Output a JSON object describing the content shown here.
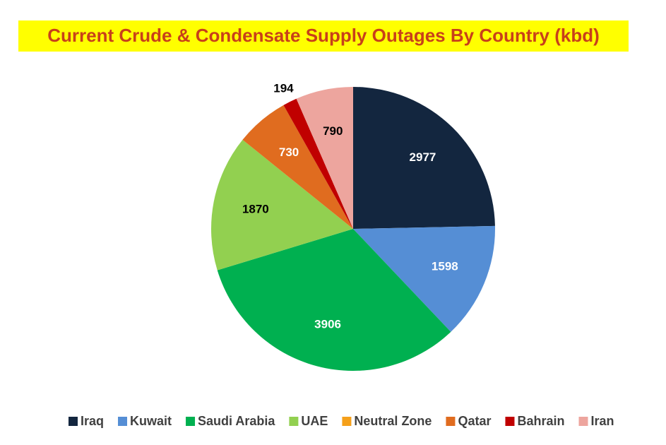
{
  "chart_data": {
    "type": "pie",
    "title": "Current Crude & Condensate Supply Outages By Country (kbd)",
    "categories": [
      "Iraq",
      "Kuwait",
      "Saudi Arabia",
      "UAE",
      "Neutral Zone",
      "Qatar",
      "Bahrain",
      "Iran"
    ],
    "values": [
      2977,
      1598,
      3906,
      1870,
      0,
      730,
      194,
      790
    ],
    "value_labels": [
      "2977",
      "1598",
      "3906",
      "1870",
      null,
      "730",
      "194",
      "790"
    ],
    "colors": [
      "#13263f",
      "#558ed5",
      "#00b050",
      "#92d050",
      "#f5a01a",
      "#e06c1f",
      "#c00000",
      "#eda59e"
    ],
    "legend": "bottom"
  }
}
